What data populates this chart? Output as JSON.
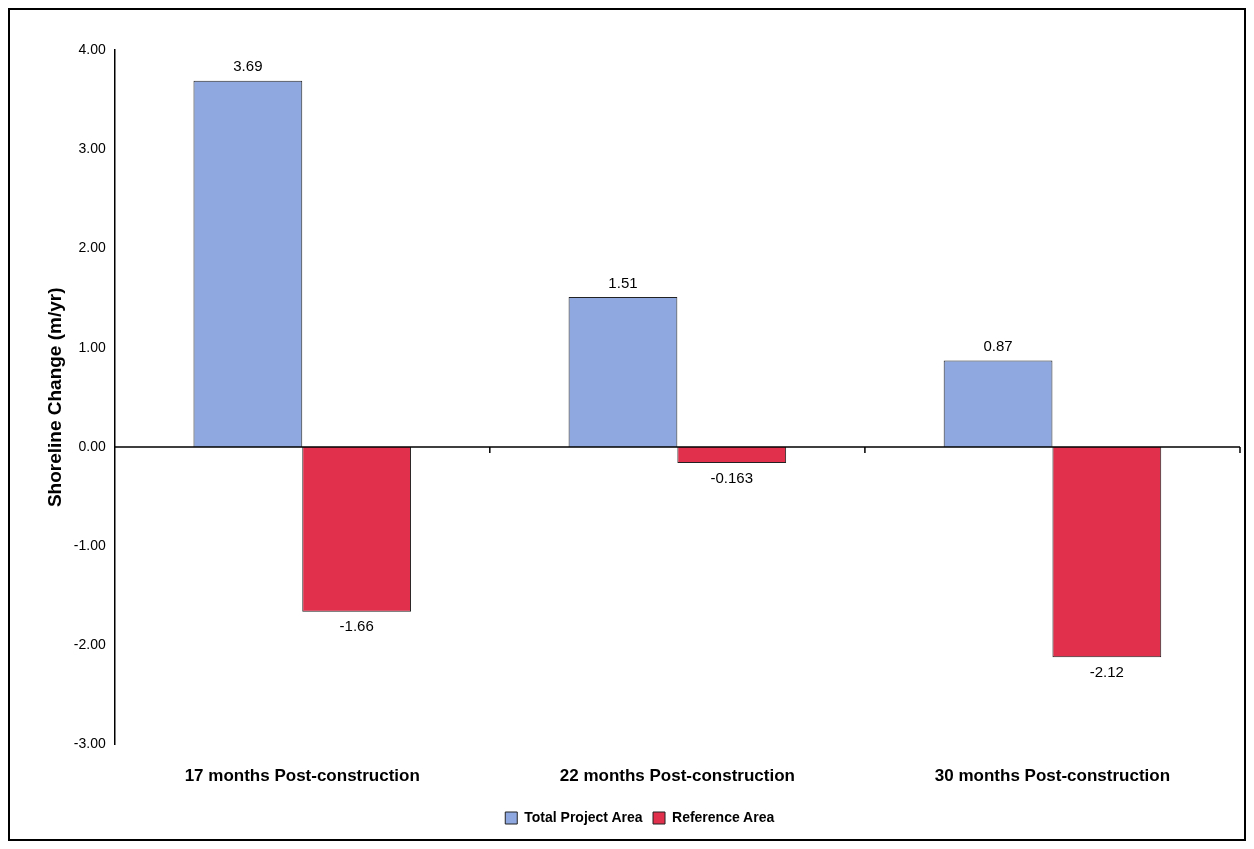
{
  "chart_data": {
    "type": "bar",
    "ylabel": "Shoreline Change (m/yr)",
    "categories": [
      "17 months Post-construction",
      "22 months Post-construction",
      "30 months Post-construction"
    ],
    "series": [
      {
        "name": "Total Project Area",
        "color": "#8fa9e0",
        "values": [
          3.69,
          1.51,
          0.87
        ]
      },
      {
        "name": "Reference Area",
        "color": "#e0304c",
        "values": [
          -1.66,
          -0.163,
          -2.12
        ]
      }
    ],
    "ylim": [
      -3,
      4
    ],
    "yticks": [
      {
        "value": 4,
        "label": "4.00"
      },
      {
        "value": 3,
        "label": "3.00"
      },
      {
        "value": 2,
        "label": "2.00"
      },
      {
        "value": 1,
        "label": "1.00"
      },
      {
        "value": 0,
        "label": "0.00"
      },
      {
        "value": -1,
        "label": "-1.00"
      },
      {
        "value": -2,
        "label": "-2.00"
      },
      {
        "value": -3,
        "label": "-3.00"
      }
    ],
    "data_labels": true,
    "legend": "bottom"
  }
}
